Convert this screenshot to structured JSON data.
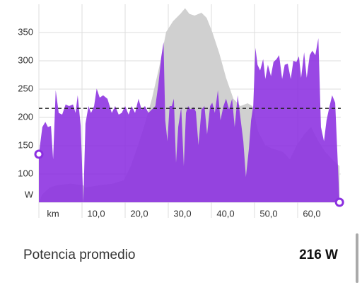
{
  "chart_data": {
    "type": "area",
    "x": [
      0,
      0.8,
      1.5,
      2.1,
      2.8,
      3.3,
      3.9,
      4.6,
      5.4,
      6.2,
      7.0,
      7.9,
      8.5,
      9.0,
      9.7,
      10.3,
      10.8,
      11.5,
      12.1,
      12.8,
      13.4,
      14.1,
      14.9,
      15.9,
      16.9,
      17.7,
      18.5,
      19.2,
      20.0,
      20.8,
      21.5,
      22.3,
      23.1,
      23.8,
      24.6,
      25.4,
      26.2,
      27.0,
      27.7,
      28.4,
      28.9,
      29.3,
      29.8,
      30.3,
      30.8,
      31.3,
      31.8,
      32.3,
      33.0,
      33.6,
      34.1,
      34.6,
      35.2,
      35.9,
      36.4,
      37.0,
      37.7,
      38.4,
      39.0,
      39.7,
      40.2,
      40.8,
      41.5,
      42.1,
      42.8,
      43.4,
      44.1,
      44.8,
      45.4,
      46.1,
      46.7,
      47.4,
      48.0,
      48.7,
      49.2,
      49.7,
      50.2,
      50.7,
      51.3,
      52.0,
      52.5,
      53.1,
      53.8,
      54.4,
      55.1,
      55.7,
      56.4,
      57.0,
      57.7,
      58.4,
      59.0,
      59.7,
      60.3,
      60.8,
      61.5,
      62.1,
      62.8,
      63.4,
      64.1,
      64.8,
      65.4,
      66.1,
      66.7,
      67.4,
      68.0,
      68.7,
      69.3,
      69.7
    ],
    "series": [
      {
        "color": "#8b2fe0",
        "values": [
          135,
          183,
          192,
          183,
          185,
          126,
          248,
          208,
          205,
          223,
          220,
          223,
          208,
          239,
          185,
          50,
          189,
          220,
          208,
          220,
          251,
          235,
          239,
          233,
          208,
          220,
          205,
          208,
          220,
          205,
          220,
          208,
          233,
          214,
          220,
          208,
          214,
          220,
          258,
          308,
          333,
          195,
          158,
          220,
          220,
          233,
          120,
          183,
          218,
          114,
          208,
          220,
          214,
          218,
          210,
          151,
          214,
          220,
          170,
          220,
          226,
          208,
          248,
          195,
          220,
          233,
          214,
          233,
          183,
          239,
          201,
          158,
          95,
          145,
          195,
          220,
          323,
          293,
          283,
          303,
          268,
          293,
          273,
          298,
          303,
          310,
          268,
          293,
          295,
          268,
          300,
          298,
          308,
          270,
          315,
          270,
          310,
          318,
          310,
          340,
          183,
          158,
          195,
          220,
          239,
          226,
          120,
          50
        ]
      },
      {
        "color": "#d0d0d0",
        "x": [
          0,
          0.8,
          2.5,
          4.1,
          7.4,
          10.3,
          10.7,
          13.9,
          17.2,
          19.7,
          21.3,
          23.0,
          24.6,
          26.2,
          27.9,
          29.5,
          31.1,
          32.8,
          33.9,
          34.9,
          36.1,
          37.7,
          38.9,
          40.2,
          41.8,
          43.4,
          45.1,
          46.7,
          48.4,
          49.5,
          50.8,
          52.5,
          54.1,
          56.6,
          58.2,
          59.8,
          61.5,
          63.1,
          64.8,
          66.4,
          68.0,
          69.7
        ],
        "values": [
          50,
          64,
          76,
          80,
          83,
          80,
          76,
          80,
          83,
          89,
          114,
          151,
          189,
          233,
          289,
          351,
          370,
          383,
          393,
          383,
          380,
          385,
          376,
          351,
          314,
          270,
          233,
          220,
          225,
          220,
          176,
          151,
          145,
          139,
          126,
          151,
          170,
          183,
          158,
          139,
          126,
          114
        ]
      }
    ],
    "xlim": [
      0,
      70
    ],
    "xticks": [
      {
        "value": 0,
        "label": "km"
      },
      {
        "value": 10,
        "label": "10,0"
      },
      {
        "value": 20,
        "label": "20,0"
      },
      {
        "value": 30,
        "label": "30,0"
      },
      {
        "value": 40,
        "label": "40,0"
      },
      {
        "value": 50,
        "label": "50,0"
      },
      {
        "value": 60,
        "label": "60,0"
      }
    ],
    "ylim": [
      50,
      400
    ],
    "yticks": [
      {
        "value": 50,
        "label": "W"
      },
      100,
      150,
      200,
      250,
      300,
      350
    ],
    "average": 216,
    "grid": true
  },
  "stat": {
    "label": "Potencia promedio",
    "value": "216 W"
  }
}
